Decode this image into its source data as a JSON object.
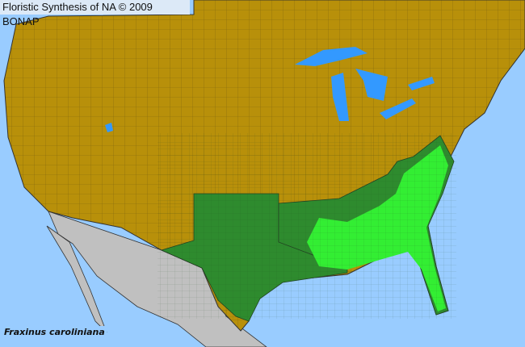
{
  "title": "Floristic Synthesis of NA © 2009 BONAP",
  "species": "Fraxinus caroliniana",
  "colors": {
    "water": "#99ccff",
    "land_absent": "#b8900a",
    "outside_region": "#c0c0c0",
    "present_state": "#2e8b2e",
    "present_county": "#33ee33",
    "county_lines": "#5a4a10"
  }
}
